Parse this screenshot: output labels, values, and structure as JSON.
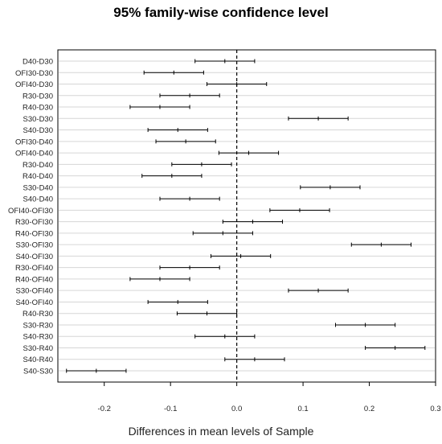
{
  "chart_data": {
    "type": "interval",
    "title": "95% family-wise confidence level",
    "xlabel": "Differences in mean levels of Sample",
    "ylabel": "",
    "xlim": [
      -0.27,
      0.3
    ],
    "xticks": [
      -0.2,
      -0.1,
      0.0,
      0.1,
      0.2,
      0.3
    ],
    "xtick_labels": [
      "-0.2",
      "-0.1",
      "0.0",
      "0.1",
      "0.2",
      "0.3"
    ],
    "reference_line": 0,
    "grid": "horizontal",
    "comparisons": [
      {
        "label": "D40-D30",
        "lwr": -0.063,
        "diff": -0.018,
        "upr": 0.027
      },
      {
        "label": "OFI30-D30",
        "lwr": -0.14,
        "diff": -0.095,
        "upr": -0.05
      },
      {
        "label": "OFI40-D30",
        "lwr": -0.045,
        "diff": 0.0,
        "upr": 0.045
      },
      {
        "label": "R30-D30",
        "lwr": -0.116,
        "diff": -0.071,
        "upr": -0.026
      },
      {
        "label": "R40-D30",
        "lwr": -0.161,
        "diff": -0.116,
        "upr": -0.071
      },
      {
        "label": "S30-D30",
        "lwr": 0.078,
        "diff": 0.123,
        "upr": 0.168
      },
      {
        "label": "S40-D30",
        "lwr": -0.134,
        "diff": -0.089,
        "upr": -0.044
      },
      {
        "label": "OFI30-D40",
        "lwr": -0.122,
        "diff": -0.077,
        "upr": -0.032
      },
      {
        "label": "OFI40-D40",
        "lwr": -0.027,
        "diff": 0.018,
        "upr": 0.063
      },
      {
        "label": "R30-D40",
        "lwr": -0.098,
        "diff": -0.053,
        "upr": -0.008
      },
      {
        "label": "R40-D40",
        "lwr": -0.143,
        "diff": -0.098,
        "upr": -0.053
      },
      {
        "label": "S30-D40",
        "lwr": 0.096,
        "diff": 0.141,
        "upr": 0.186
      },
      {
        "label": "S40-D40",
        "lwr": -0.116,
        "diff": -0.071,
        "upr": -0.026
      },
      {
        "label": "OFI40-OFI30",
        "lwr": 0.05,
        "diff": 0.095,
        "upr": 0.14
      },
      {
        "label": "R30-OFI30",
        "lwr": -0.021,
        "diff": 0.024,
        "upr": 0.069
      },
      {
        "label": "R40-OFI30",
        "lwr": -0.066,
        "diff": -0.021,
        "upr": 0.024
      },
      {
        "label": "S30-OFI30",
        "lwr": 0.173,
        "diff": 0.218,
        "upr": 0.263
      },
      {
        "label": "S40-OFI30",
        "lwr": -0.039,
        "diff": 0.006,
        "upr": 0.051
      },
      {
        "label": "R30-OFI40",
        "lwr": -0.116,
        "diff": -0.071,
        "upr": -0.026
      },
      {
        "label": "R40-OFI40",
        "lwr": -0.161,
        "diff": -0.116,
        "upr": -0.071
      },
      {
        "label": "S30-OFI40",
        "lwr": 0.078,
        "diff": 0.123,
        "upr": 0.168
      },
      {
        "label": "S40-OFI40",
        "lwr": -0.134,
        "diff": -0.089,
        "upr": -0.044
      },
      {
        "label": "R40-R30",
        "lwr": -0.09,
        "diff": -0.045,
        "upr": 0.0
      },
      {
        "label": "S30-R30",
        "lwr": 0.149,
        "diff": 0.194,
        "upr": 0.239
      },
      {
        "label": "S40-R30",
        "lwr": -0.063,
        "diff": -0.018,
        "upr": 0.027
      },
      {
        "label": "S30-R40",
        "lwr": 0.194,
        "diff": 0.239,
        "upr": 0.284
      },
      {
        "label": "S40-R40",
        "lwr": -0.018,
        "diff": 0.027,
        "upr": 0.072
      },
      {
        "label": "S40-S30",
        "lwr": -0.257,
        "diff": -0.212,
        "upr": -0.167
      }
    ]
  }
}
